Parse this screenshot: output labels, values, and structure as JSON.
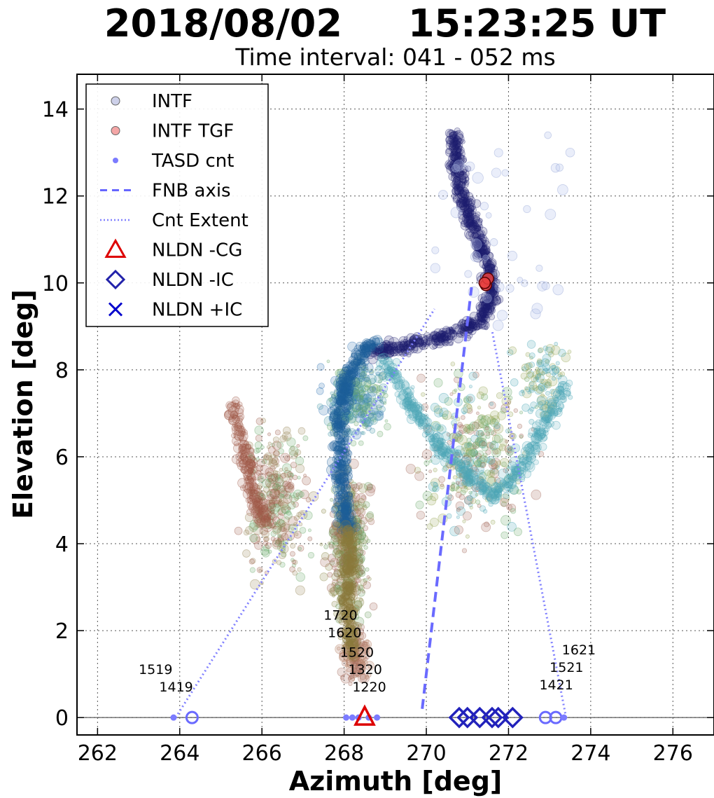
{
  "chart_data": {
    "type": "scatter",
    "title": "2018/08/02     15:23:25 UT",
    "subtitle": "Time interval:  041 - 052 ms",
    "xlabel": "Azimuth [deg]",
    "ylabel": "Elevation [deg]",
    "xlim": [
      261.5,
      277
    ],
    "ylim": [
      -0.4,
      14.8
    ],
    "xticks": [
      262,
      264,
      266,
      268,
      270,
      272,
      274,
      276
    ],
    "yticks": [
      0,
      2,
      4,
      6,
      8,
      10,
      12,
      14
    ],
    "grid": true,
    "legend_position": "top-left",
    "legend": [
      {
        "label": "INTF",
        "marker": "circle",
        "color": "#b8bce0"
      },
      {
        "label": "INTF TGF",
        "marker": "circle",
        "color": "#f08080"
      },
      {
        "label": "TASD cnt",
        "marker": "dot",
        "color": "#7b7bff"
      },
      {
        "label": "FNB axis",
        "marker": "dashed-line",
        "color": "#6666ff"
      },
      {
        "label": "Cnt Extent",
        "marker": "dotted-line",
        "color": "#8080ff"
      },
      {
        "label": "NLDN -CG",
        "marker": "triangle",
        "color": "#dd0000"
      },
      {
        "label": "NLDN -IC",
        "marker": "diamond",
        "color": "#2222aa"
      },
      {
        "label": "NLDN +IC",
        "marker": "x",
        "color": "#0000cc"
      }
    ],
    "intf_structure": [
      {
        "name": "upper_channel",
        "color": "#1e1e6e",
        "path": [
          [
            270.7,
            13.4
          ],
          [
            270.75,
            12.8
          ],
          [
            270.8,
            12.2
          ],
          [
            271.0,
            11.6
          ],
          [
            271.3,
            11.0
          ],
          [
            271.5,
            10.3
          ],
          [
            271.6,
            9.7
          ],
          [
            271.4,
            9.2
          ],
          [
            270.9,
            8.9
          ],
          [
            270.1,
            8.7
          ],
          [
            269.3,
            8.5
          ],
          [
            268.7,
            8.4
          ]
        ]
      },
      {
        "name": "mid_channel",
        "color": "#1e5f9a",
        "path": [
          [
            268.7,
            8.6
          ],
          [
            268.3,
            8.2
          ],
          [
            268.0,
            7.6
          ],
          [
            267.9,
            7.0
          ],
          [
            267.9,
            6.3
          ],
          [
            267.95,
            5.6
          ],
          [
            268.0,
            4.9
          ],
          [
            268.1,
            4.3
          ]
        ]
      },
      {
        "name": "lower_channel",
        "color": "#8c7a3c",
        "path": [
          [
            268.1,
            4.3
          ],
          [
            268.15,
            3.6
          ],
          [
            268.1,
            2.9
          ],
          [
            268.1,
            2.2
          ],
          [
            268.2,
            1.5
          ]
        ]
      },
      {
        "name": "left_cloud",
        "color": "#a05a4a",
        "path": [
          [
            265.3,
            7.2
          ],
          [
            265.6,
            6.0
          ],
          [
            265.8,
            5.1
          ],
          [
            266.1,
            4.5
          ]
        ]
      },
      {
        "name": "cyan_branch",
        "color": "#4fa8b8",
        "path": [
          [
            269.0,
            8.2
          ],
          [
            269.6,
            7.2
          ],
          [
            270.2,
            6.4
          ],
          [
            270.9,
            5.7
          ],
          [
            271.6,
            5.1
          ],
          [
            272.3,
            5.7
          ],
          [
            272.9,
            6.7
          ],
          [
            273.4,
            7.7
          ]
        ]
      }
    ],
    "intf_tgf": [
      [
        271.45,
        9.95
      ],
      [
        271.5,
        10.1
      ],
      [
        271.42,
        10.0
      ]
    ],
    "tasd_cnt": [
      {
        "x": 263.85,
        "y": 0
      },
      {
        "x": 264.3,
        "y": 0,
        "size": "large"
      },
      {
        "x": 268.05,
        "y": 0
      },
      {
        "x": 268.2,
        "y": 0
      },
      {
        "x": 268.35,
        "y": 0
      },
      {
        "x": 268.6,
        "y": 0
      },
      {
        "x": 268.8,
        "y": 0
      },
      {
        "x": 272.9,
        "y": 0,
        "size": "large"
      },
      {
        "x": 273.15,
        "y": 0,
        "size": "large"
      },
      {
        "x": 273.35,
        "y": 0
      }
    ],
    "fnb_axis": [
      [
        269.9,
        0.2
      ],
      [
        271.1,
        9.9
      ]
    ],
    "cnt_extent": [
      [
        [
          263.9,
          0
        ],
        [
          270.2,
          9.4
        ]
      ],
      [
        [
          273.4,
          0
        ],
        [
          271.6,
          8.9
        ]
      ]
    ],
    "nldn_cg": [
      [
        268.5,
        0
      ]
    ],
    "nldn_ic_neg": [
      [
        270.8,
        0
      ],
      [
        271.0,
        0
      ],
      [
        271.3,
        0
      ],
      [
        271.6,
        0
      ],
      [
        271.75,
        0
      ],
      [
        272.1,
        0
      ]
    ],
    "nldn_ic_pos": [],
    "annotations": [
      {
        "text": "1720",
        "x": 267.5,
        "y": 2.25
      },
      {
        "text": "1620",
        "x": 267.6,
        "y": 1.85
      },
      {
        "text": "1520",
        "x": 267.9,
        "y": 1.4
      },
      {
        "text": "1320",
        "x": 268.1,
        "y": 1.0
      },
      {
        "text": "1220",
        "x": 268.2,
        "y": 0.6
      },
      {
        "text": "1519",
        "x": 263.0,
        "y": 1.0
      },
      {
        "text": "1419",
        "x": 263.5,
        "y": 0.6
      },
      {
        "text": "1621",
        "x": 273.3,
        "y": 1.45
      },
      {
        "text": "1521",
        "x": 273.0,
        "y": 1.05
      },
      {
        "text": "1421",
        "x": 272.75,
        "y": 0.65
      }
    ]
  }
}
